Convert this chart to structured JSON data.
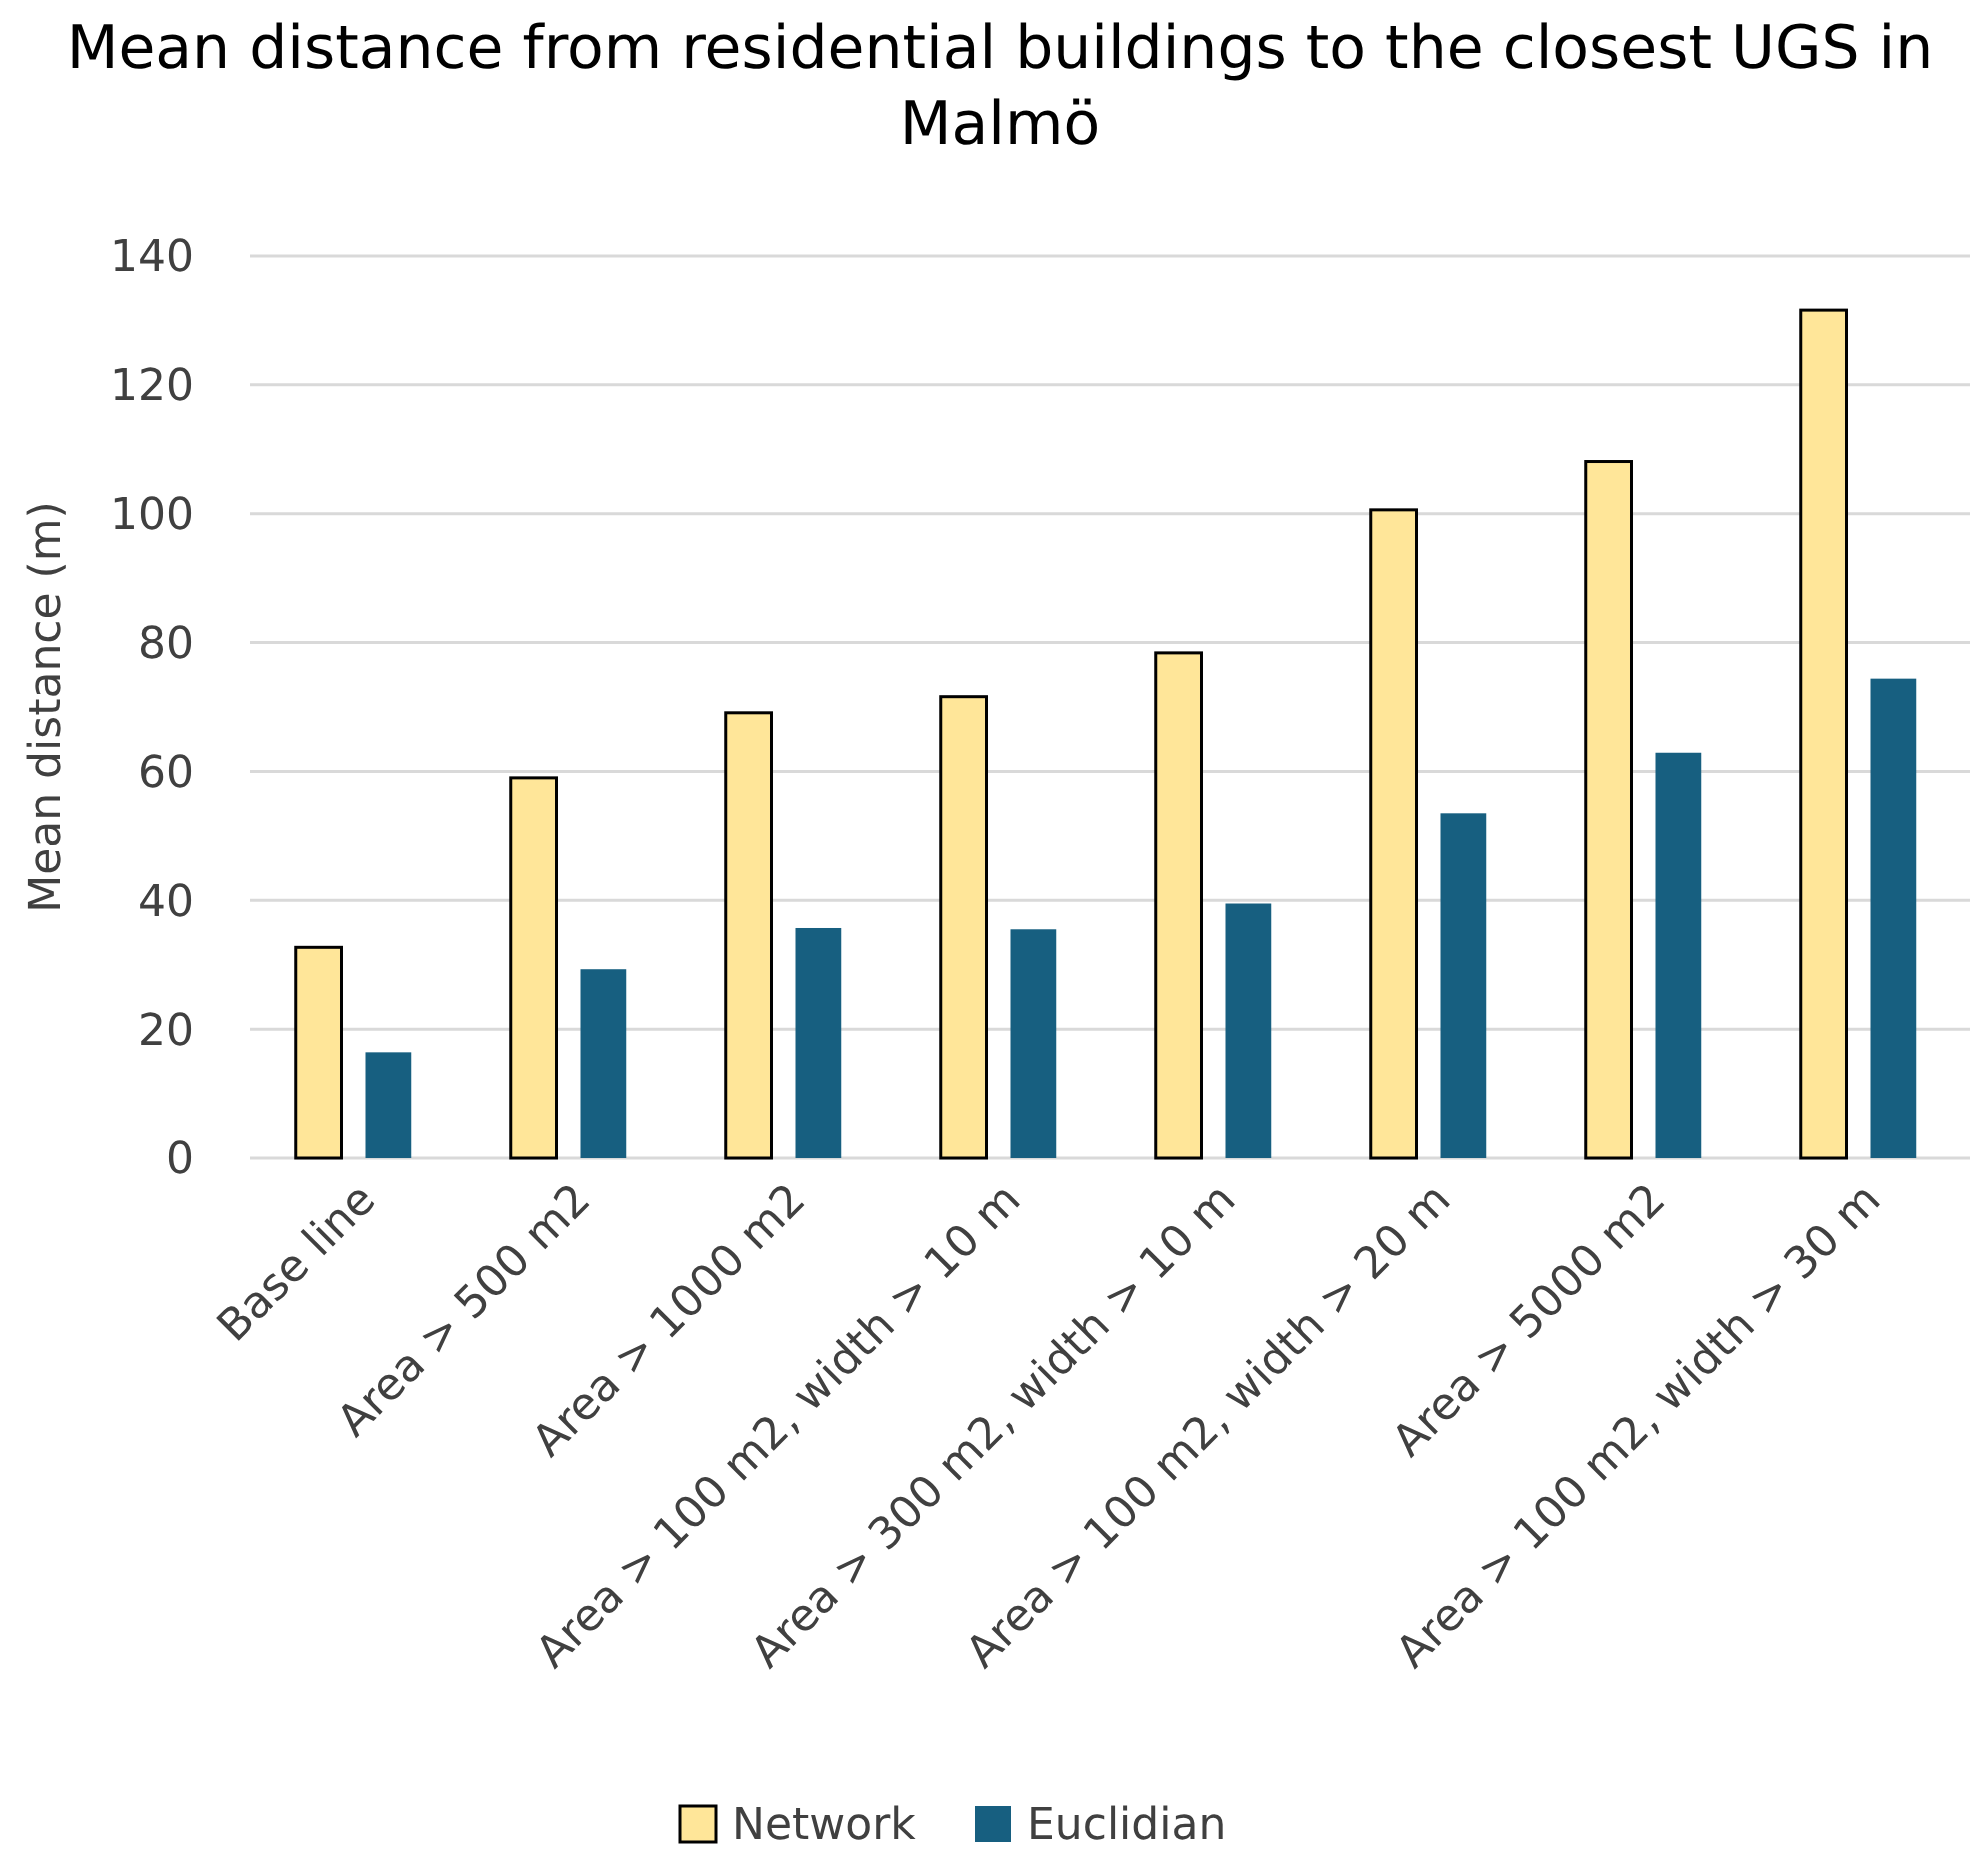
{
  "chart_data": {
    "type": "bar",
    "title": "Mean distance from residential buildings to the closest UGS in Malmö",
    "ylabel": "Mean distance (m)",
    "categories": [
      "Base line",
      "Area > 500 m2",
      "Area > 1000 m2",
      "Area > 100 m2, width > 10 m",
      "Area > 300 m2, width > 10 m",
      "Area > 100 m2, width > 20 m",
      "Area > 5000 m2",
      "Area > 100 m2, width > 30 m"
    ],
    "series": [
      {
        "name": "Network",
        "color": "#ffe699",
        "values": [
          32.7,
          59,
          69.1,
          71.6,
          78.4,
          100.6,
          108.1,
          131.6
        ]
      },
      {
        "name": "Euclidian",
        "color": "#175f80",
        "values": [
          16.4,
          29.3,
          35.7,
          35.5,
          39.5,
          53.5,
          62.9,
          74.4
        ]
      }
    ],
    "ylim": [
      0,
      140
    ],
    "yticks": [
      0,
      20,
      40,
      60,
      80,
      100,
      120,
      140
    ],
    "grid": "y",
    "legend": "bottom"
  }
}
